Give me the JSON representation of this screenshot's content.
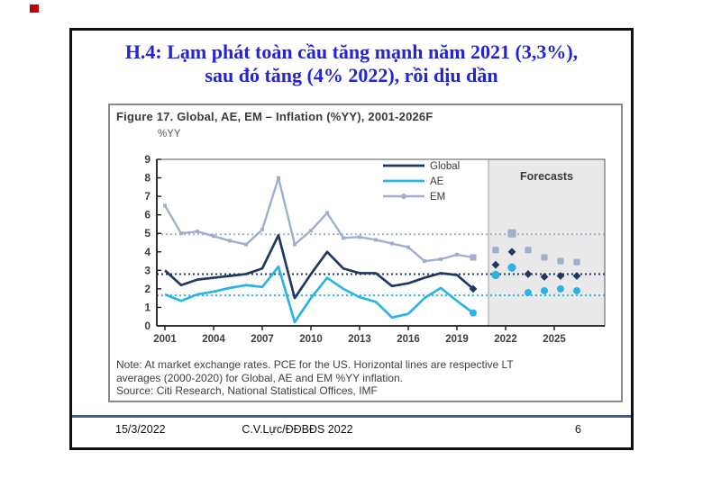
{
  "page": {
    "red_marker_color": "#c00000"
  },
  "slide": {
    "title_line1": "H.4: Lạm phát toàn cầu tăng mạnh năm 2021 (3,3%),",
    "title_line2": "sau đó tăng (4% 2022), rồi dịu dần",
    "title_color": "#2424d6"
  },
  "figure": {
    "title": "Figure 17. Global, AE, EM – Inflation (%YY), 2001-2026F",
    "y_unit_label": "%YY",
    "note_line1": "Note: At market exchange rates. PCE for the US. Horizontal lines are respective LT",
    "note_line2": "averages (2000-2020) for Global, AE and EM %YY inflation.",
    "source": "Source: Citi Research, National Statistical Offices, IMF"
  },
  "chart_data": {
    "type": "line",
    "title": "Figure 17. Global, AE, EM – Inflation (%YY), 2001-2026F",
    "ylabel": "%YY",
    "ylim": [
      0,
      9
    ],
    "yticks": [
      0,
      1,
      2,
      3,
      4,
      5,
      6,
      7,
      8,
      9
    ],
    "xticks": [
      2001,
      2004,
      2007,
      2010,
      2013,
      2016,
      2019,
      2022,
      2025
    ],
    "grid": false,
    "legend_position": "top-right-inside",
    "forecast_label": "Forecasts",
    "forecast_region": {
      "start_year": 2021,
      "end_year": 2026,
      "fill": "#e9e9e9",
      "border": "#9a9a9a"
    },
    "years_history": [
      2001,
      2002,
      2003,
      2004,
      2005,
      2006,
      2007,
      2008,
      2009,
      2010,
      2011,
      2012,
      2013,
      2014,
      2015,
      2016,
      2017,
      2018,
      2019,
      2020
    ],
    "years_forecast": [
      2021,
      2022,
      2023,
      2024,
      2025,
      2026
    ],
    "series": [
      {
        "name": "Global",
        "color": "#1f3864",
        "marker": "diamond",
        "lt_average": 2.8,
        "history": [
          3.0,
          2.2,
          2.5,
          2.6,
          2.7,
          2.8,
          3.1,
          4.9,
          1.5,
          2.8,
          4.0,
          3.1,
          2.85,
          2.85,
          2.15,
          2.3,
          2.6,
          2.85,
          2.75,
          2.0
        ],
        "forecast": [
          3.3,
          4.0,
          2.8,
          2.65,
          2.7,
          2.7
        ]
      },
      {
        "name": "AE",
        "color": "#2bb3e8",
        "marker": "circle",
        "lt_average": 1.65,
        "history": [
          1.7,
          1.35,
          1.7,
          1.85,
          2.05,
          2.2,
          2.1,
          3.2,
          0.2,
          1.5,
          2.6,
          2.0,
          1.55,
          1.3,
          0.45,
          0.65,
          1.5,
          2.05,
          1.35,
          0.7
        ],
        "forecast": [
          2.75,
          3.15,
          1.8,
          1.9,
          2.0,
          1.9
        ]
      },
      {
        "name": "EM",
        "color": "#9fb0cd",
        "marker": "square",
        "lt_average": 4.95,
        "history": [
          6.5,
          5.0,
          5.1,
          4.85,
          4.6,
          4.4,
          5.2,
          8.0,
          4.4,
          5.15,
          6.1,
          4.75,
          4.8,
          4.65,
          4.45,
          4.25,
          3.5,
          3.6,
          3.85,
          3.7
        ],
        "forecast": [
          4.1,
          5.0,
          4.1,
          3.7,
          3.5,
          3.45
        ]
      }
    ]
  },
  "footer": {
    "date": "15/3/2022",
    "author": "C.V.Lực/ĐĐBĐS 2022",
    "page_number": "6"
  }
}
